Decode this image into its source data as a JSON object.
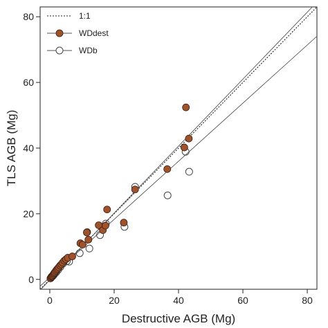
{
  "chart_data": {
    "type": "scatter",
    "xlabel": "Destructive  AGB  (Mg)",
    "ylabel": "TLS  AGB  (Mg)",
    "xlim": [
      -3,
      83
    ],
    "ylim": [
      -3,
      83
    ],
    "x_ticks": [
      "0",
      "20",
      "40",
      "60",
      "80"
    ],
    "y_ticks": [
      "0",
      "20",
      "40",
      "60",
      "80"
    ],
    "grid": false,
    "legend_position": "top-left",
    "reference_line": {
      "name": "1:1",
      "style": "dotted",
      "slope": 1,
      "intercept": 0
    },
    "series": [
      {
        "name": "WDdest",
        "marker": "filled-circle",
        "fill": "#a0522d",
        "fit_line": {
          "slope": 1.02,
          "intercept": -0.2
        },
        "points": [
          [
            0.2,
            0.3
          ],
          [
            0.4,
            0.6
          ],
          [
            0.6,
            0.9
          ],
          [
            0.8,
            1.0
          ],
          [
            1.0,
            1.3
          ],
          [
            1.2,
            1.6
          ],
          [
            1.4,
            1.9
          ],
          [
            1.6,
            2.2
          ],
          [
            1.9,
            2.6
          ],
          [
            2.2,
            3.0
          ],
          [
            2.5,
            3.3
          ],
          [
            2.8,
            3.7
          ],
          [
            3.2,
            4.2
          ],
          [
            3.6,
            4.6
          ],
          [
            4.0,
            5.1
          ],
          [
            4.5,
            5.7
          ],
          [
            5.0,
            6.1
          ],
          [
            5.6,
            6.6
          ],
          [
            7.0,
            7.0
          ],
          [
            9.5,
            11.0
          ],
          [
            10.2,
            10.6
          ],
          [
            11.5,
            14.3
          ],
          [
            12.0,
            12.1
          ],
          [
            15.2,
            16.5
          ],
          [
            16.5,
            15.0
          ],
          [
            17.3,
            16.4
          ],
          [
            17.8,
            21.3
          ],
          [
            23.0,
            17.3
          ],
          [
            26.5,
            27.4
          ],
          [
            36.5,
            33.6
          ],
          [
            41.8,
            40.2
          ],
          [
            42.3,
            52.4
          ],
          [
            43.2,
            42.9
          ]
        ]
      },
      {
        "name": "WDb",
        "marker": "open-circle",
        "fill": "none",
        "fit_line": {
          "slope": 0.885,
          "intercept": 0.6
        },
        "points": [
          [
            0.3,
            0.4
          ],
          [
            0.7,
            0.8
          ],
          [
            1.1,
            1.2
          ],
          [
            1.5,
            1.7
          ],
          [
            2.0,
            2.2
          ],
          [
            2.6,
            2.9
          ],
          [
            3.3,
            3.8
          ],
          [
            4.2,
            4.9
          ],
          [
            5.3,
            5.6
          ],
          [
            6.0,
            5.4
          ],
          [
            9.3,
            8.0
          ],
          [
            11.6,
            14.4
          ],
          [
            12.3,
            9.4
          ],
          [
            15.6,
            13.5
          ],
          [
            17.4,
            17.0
          ],
          [
            23.2,
            16.0
          ],
          [
            26.5,
            28.2
          ],
          [
            36.6,
            25.6
          ],
          [
            42.2,
            38.9
          ],
          [
            43.3,
            32.8
          ]
        ]
      }
    ]
  }
}
